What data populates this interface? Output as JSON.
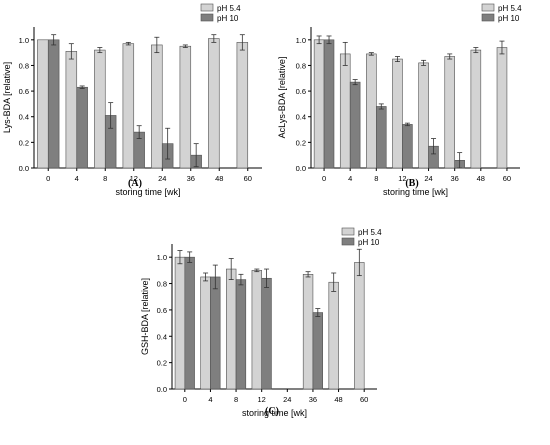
{
  "colors": {
    "ph54": "#d3d3d3",
    "ph10": "#7f7f7f",
    "bar_stroke": "#505050",
    "axis": "#000000"
  },
  "chart_data": [
    {
      "type": "bar",
      "panel_label": "(A)",
      "xlabel": "storing time [wk]",
      "ylabel": "Lys-BDA [relative]",
      "ylim": [
        0,
        1.1
      ],
      "yticks": [
        "0.0",
        "0.2",
        "0.4",
        "0.6",
        "0.8",
        "1.0"
      ],
      "categories": [
        "0",
        "4",
        "8",
        "12",
        "24",
        "36",
        "48",
        "60"
      ],
      "legend": "top-right",
      "series": [
        {
          "name": "pH 5.4",
          "values": [
            1.0,
            0.91,
            0.92,
            0.97,
            0.96,
            0.95,
            1.01,
            0.98
          ],
          "errors": [
            0.0,
            0.06,
            0.02,
            0.01,
            0.06,
            0.01,
            0.03,
            0.06
          ]
        },
        {
          "name": "pH 10",
          "values": [
            1.0,
            0.63,
            0.41,
            0.28,
            0.19,
            0.1,
            null,
            null
          ],
          "errors": [
            0.04,
            0.01,
            0.1,
            0.05,
            0.12,
            0.09,
            null,
            null
          ]
        }
      ]
    },
    {
      "type": "bar",
      "panel_label": "(B)",
      "xlabel": "storing time [wk]",
      "ylabel": "AcLys-BDA [relative]",
      "ylim": [
        0,
        1.1
      ],
      "yticks": [
        "0.0",
        "0.2",
        "0.4",
        "0.6",
        "0.8",
        "1.0"
      ],
      "categories": [
        "0",
        "4",
        "8",
        "12",
        "24",
        "36",
        "48",
        "60"
      ],
      "legend": "top-right",
      "series": [
        {
          "name": "pH 5.4",
          "values": [
            1.0,
            0.89,
            0.89,
            0.85,
            0.82,
            0.87,
            0.92,
            0.94
          ],
          "errors": [
            0.03,
            0.09,
            0.01,
            0.02,
            0.02,
            0.02,
            0.02,
            0.05
          ]
        },
        {
          "name": "pH 10",
          "values": [
            1.0,
            0.67,
            0.48,
            0.34,
            0.17,
            0.06,
            null,
            null
          ],
          "errors": [
            0.03,
            0.02,
            0.02,
            0.01,
            0.06,
            0.06,
            null,
            null
          ]
        }
      ]
    },
    {
      "type": "bar",
      "panel_label": "(C)",
      "xlabel": "storing time [wk]",
      "ylabel": "GSH-BDA [relative]",
      "ylim": [
        0,
        1.1
      ],
      "yticks": [
        "0.0",
        "0.2",
        "0.4",
        "0.6",
        "0.8",
        "1.0"
      ],
      "categories": [
        "0",
        "4",
        "8",
        "12",
        "24",
        "36",
        "48",
        "60"
      ],
      "legend": "top-right",
      "series": [
        {
          "name": "pH 5.4",
          "values": [
            1.0,
            0.85,
            0.91,
            0.9,
            null,
            0.87,
            0.81,
            0.96
          ],
          "errors": [
            0.05,
            0.03,
            0.08,
            0.01,
            null,
            0.02,
            0.07,
            0.1
          ]
        },
        {
          "name": "pH 10",
          "values": [
            1.0,
            0.85,
            0.83,
            0.84,
            null,
            0.58,
            null,
            null
          ],
          "errors": [
            0.04,
            0.09,
            0.04,
            0.07,
            null,
            0.03,
            null,
            null
          ]
        }
      ]
    }
  ]
}
